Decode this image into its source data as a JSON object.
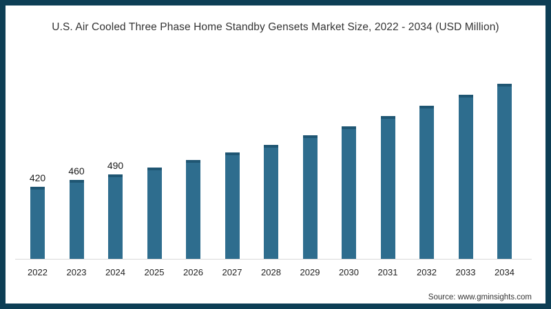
{
  "frame": {
    "border_color": "#0d3e55",
    "background": "#ffffff"
  },
  "chart_data": {
    "type": "bar",
    "title": "U.S. Air Cooled Three Phase Home Standby Gensets Market Size, 2022 - 2034 (USD Million)",
    "categories": [
      "2022",
      "2023",
      "2024",
      "2025",
      "2026",
      "2027",
      "2028",
      "2029",
      "2030",
      "2031",
      "2032",
      "2033",
      "2034"
    ],
    "values": [
      420,
      460,
      490,
      530,
      575,
      620,
      665,
      720,
      770,
      830,
      890,
      955,
      1020
    ],
    "data_labels": [
      "420",
      "460",
      "490",
      "",
      "",
      "",
      "",
      "",
      "",
      "",
      "",
      "",
      ""
    ],
    "xlabel": "",
    "ylabel": "",
    "ylim": [
      0,
      1080
    ],
    "grid": false,
    "legend": "none",
    "bar_color": "#2e6d8e",
    "bar_cap_color": "#1f5673",
    "axis_line_color": "#d9d9d9",
    "value_label_color": "#1a1a1a",
    "tick_label_color": "#1f1f1f",
    "title_color": "#333333"
  },
  "footer": {
    "source": "Source: www.gminsights.com"
  }
}
